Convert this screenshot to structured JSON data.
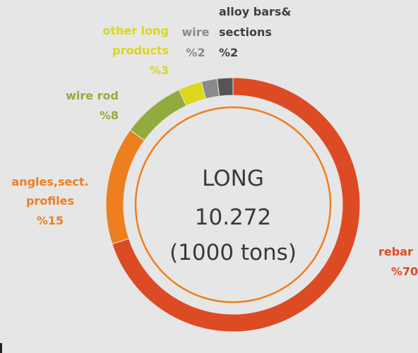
{
  "chart_data": {
    "type": "pie",
    "title": "LONG",
    "center_lines": [
      "LONG",
      "10.272",
      "(1000 tons)"
    ],
    "slices": [
      {
        "name": "rebar",
        "value": 70,
        "label": "%70",
        "color": "#dc4b23"
      },
      {
        "name": "angles,sect. profiles",
        "value": 15,
        "label": "%15",
        "color": "#ee7f1e"
      },
      {
        "name": "wire rod",
        "value": 8,
        "label": "%8",
        "color": "#92ab3e"
      },
      {
        "name": "other long products",
        "value": 3,
        "label": "%3",
        "color": "#dbd719"
      },
      {
        "name": "wire",
        "value": 2,
        "label": "%2",
        "color": "#8a8a8a"
      },
      {
        "name": "alloy bars& sections",
        "value": 2,
        "label": "%2",
        "color": "#555555"
      }
    ],
    "inner_ring_color": "#ee7f1e",
    "legend": "none"
  }
}
